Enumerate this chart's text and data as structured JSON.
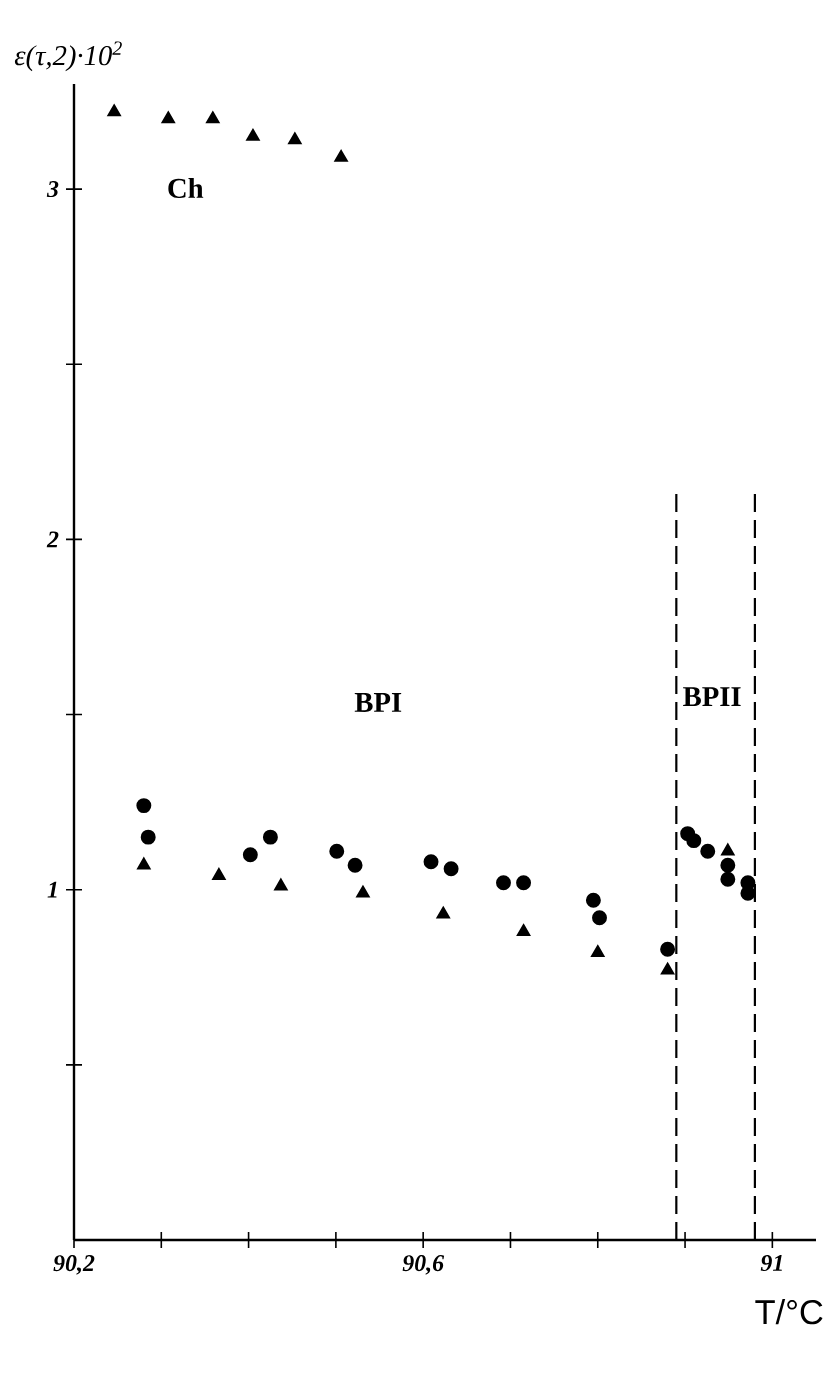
{
  "chart_data": {
    "type": "scatter",
    "xlabel": "T/°C",
    "ylabel": "ε(τ,2)·10$^{2}$",
    "xlim": [
      90.2,
      91.05
    ],
    "ylim": [
      0,
      3.3
    ],
    "xticks": [
      {
        "value": 90.2,
        "label": "90,2"
      },
      {
        "value": 90.3,
        "label": null
      },
      {
        "value": 90.4,
        "label": null
      },
      {
        "value": 90.5,
        "label": null
      },
      {
        "value": 90.6,
        "label": "90,6"
      },
      {
        "value": 90.7,
        "label": null
      },
      {
        "value": 90.8,
        "label": null
      },
      {
        "value": 90.9,
        "label": null
      },
      {
        "value": 91,
        "label": "91"
      }
    ],
    "yticks": [
      {
        "value": 0.5,
        "label": null
      },
      1,
      {
        "value": 1.5,
        "label": null
      },
      2,
      {
        "value": 2.5,
        "label": null
      },
      3
    ],
    "grid": false,
    "series": [
      {
        "marker": "triangle",
        "color": "#000000",
        "x": [
          90.246,
          90.308,
          90.359,
          90.405,
          90.453,
          90.506
        ],
        "values": [
          3.22,
          3.2,
          3.2,
          3.15,
          3.14,
          3.09
        ]
      },
      {
        "marker": "circle",
        "color": "#000000",
        "x": [
          90.28,
          90.425,
          90.501,
          90.609,
          90.715,
          90.795,
          90.91,
          90.949,
          90.972
        ],
        "values": [
          1.24,
          1.15,
          1.11,
          1.08,
          1.02,
          0.97,
          1.14,
          1.03,
          0.99
        ]
      },
      {
        "marker": "circle",
        "color": "#000000",
        "x": [
          90.285,
          90.402,
          90.522,
          90.632,
          90.692,
          90.802,
          90.88,
          90.903,
          90.926,
          90.949,
          90.972
        ],
        "values": [
          1.15,
          1.1,
          1.07,
          1.06,
          1.02,
          0.92,
          0.83,
          1.16,
          1.11,
          1.07,
          1.02
        ]
      },
      {
        "marker": "triangle",
        "color": "#000000",
        "x": [
          90.28,
          90.366,
          90.437,
          90.531,
          90.623,
          90.715,
          90.8,
          90.88,
          90.949
        ],
        "values": [
          1.07,
          1.04,
          1.01,
          0.99,
          0.93,
          0.88,
          0.82,
          0.77,
          1.11
        ]
      }
    ],
    "ref_lines": [
      {
        "axis": "x",
        "value": 90.89,
        "line_style": "dashed",
        "color": "#000000"
      },
      {
        "axis": "x",
        "value": 90.98,
        "line_style": "dashed",
        "color": "#000000"
      }
    ],
    "annotations": [
      "Ch",
      "BPI",
      "BPII"
    ]
  }
}
